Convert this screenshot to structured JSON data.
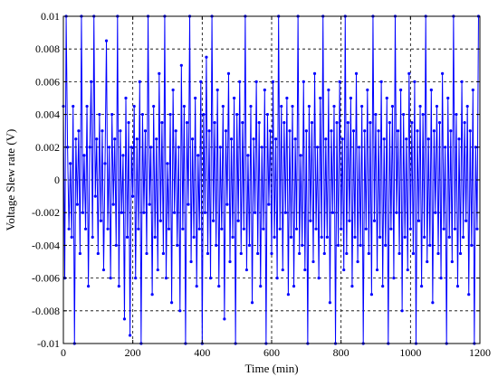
{
  "chart_data": {
    "type": "line",
    "xlabel": "Time (min)",
    "ylabel": "Voltage Slew rate (V)",
    "xlim": [
      0,
      1200
    ],
    "ylim": [
      -0.01,
      0.01
    ],
    "x_ticks": [
      0,
      200,
      400,
      600,
      800,
      1000,
      1200
    ],
    "x_tick_labels": [
      "0",
      "200",
      "400",
      "600",
      "800",
      "1000",
      "1200"
    ],
    "y_ticks": [
      0.01,
      0.008,
      0.006,
      0.004,
      0.002,
      0,
      -0.002,
      -0.004,
      -0.006,
      -0.008,
      -0.01
    ],
    "y_tick_labels": [
      "0.01",
      "0.008",
      "0.006",
      "0.004",
      "0.002",
      "0",
      "-0.002",
      "-0.004",
      "-0.006",
      "-0.008",
      "-0.01"
    ],
    "grid": true,
    "grid_style": "dashed",
    "marker": "dot",
    "series": [
      {
        "color": "#0000ff",
        "x_start": 0,
        "x_step": 4,
        "values": [
          0.0045,
          -0.006,
          0.01,
          0.002,
          -0.003,
          0.001,
          -0.0035,
          0.0045,
          -0.01,
          0.0025,
          -0.0015,
          0.003,
          -0.0045,
          0.01,
          -0.002,
          0.0015,
          -0.003,
          0.0045,
          -0.0065,
          0.002,
          0.006,
          -0.0035,
          0.01,
          -0.001,
          0.0025,
          -0.0045,
          0.004,
          -0.0025,
          0.003,
          -0.0055,
          0.001,
          0.0085,
          -0.003,
          0.002,
          -0.006,
          0.004,
          -0.0015,
          0.0025,
          -0.004,
          0.01,
          -0.0065,
          0.003,
          -0.002,
          0.0015,
          -0.0085,
          0.005,
          -0.0035,
          0.0035,
          -0.0095,
          0.002,
          -0.001,
          0.0045,
          -0.006,
          0.0025,
          -0.003,
          0.006,
          -0.01,
          0.004,
          -0.002,
          0.003,
          -0.0045,
          0.01,
          -0.0015,
          0.002,
          -0.007,
          0.0045,
          -0.0035,
          0.0025,
          -0.0055,
          0.0065,
          -0.0025,
          0.0035,
          -0.0045,
          0.01,
          -0.006,
          0.001,
          -0.003,
          0.004,
          -0.0075,
          0.0055,
          -0.002,
          0.003,
          -0.004,
          0.002,
          -0.008,
          0.007,
          -0.003,
          0.0045,
          -0.01,
          0.0035,
          -0.0015,
          0.01,
          -0.005,
          0.0025,
          -0.0035,
          0.005,
          -0.0065,
          0.0015,
          -0.003,
          0.006,
          -0.01,
          0.004,
          -0.002,
          0.0075,
          -0.0045,
          0.003,
          -0.006,
          0.01,
          -0.0025,
          0.0035,
          -0.004,
          0.0055,
          -0.0065,
          0.002,
          -0.003,
          0.0045,
          -0.0085,
          0.003,
          -0.0015,
          0.0065,
          -0.005,
          0.0025,
          -0.0035,
          0.005,
          -0.01,
          0.004,
          -0.0025,
          0.006,
          -0.0045,
          0.0035,
          -0.003,
          0.01,
          -0.0055,
          0.0015,
          -0.004,
          0.0045,
          -0.0075,
          0.0025,
          -0.002,
          0.006,
          -0.0045,
          0.0035,
          -0.0065,
          0.002,
          -0.003,
          0.0055,
          -0.01,
          0.004,
          -0.0015,
          0.003,
          -0.0045,
          0.006,
          -0.0035,
          0.0025,
          -0.006,
          0.01,
          -0.003,
          0.0045,
          -0.0055,
          0.0035,
          -0.002,
          0.005,
          -0.007,
          0.003,
          -0.0035,
          0.0045,
          -0.0065,
          0.0025,
          -0.003,
          0.01,
          -0.0045,
          0.0015,
          -0.004,
          0.006,
          -0.0055,
          0.003,
          -0.01,
          0.0045,
          -0.0025,
          0.0035,
          -0.005,
          0.0065,
          -0.003,
          0.002,
          -0.006,
          0.005,
          -0.0035,
          0.01,
          -0.0045,
          0.0025,
          -0.0035,
          0.0055,
          -0.0075,
          0.003,
          -0.002,
          0.0045,
          -0.01,
          0.0035,
          -0.004,
          0.006,
          -0.003,
          0.0025,
          -0.0055,
          0.01,
          -0.0045,
          0.0035,
          -0.0025,
          0.005,
          -0.0065,
          0.003,
          -0.0035,
          0.0065,
          -0.005,
          0.002,
          -0.004,
          0.0045,
          -0.01,
          0.003,
          -0.003,
          0.0055,
          -0.0045,
          0.0035,
          -0.007,
          0.01,
          -0.0025,
          0.004,
          -0.0055,
          0.003,
          -0.0035,
          0.006,
          -0.0065,
          0.0025,
          -0.004,
          0.005,
          -0.01,
          0.0035,
          -0.003,
          0.0045,
          -0.006,
          0.01,
          -0.002,
          0.003,
          -0.0045,
          0.0055,
          -0.008,
          0.004,
          -0.0035,
          0.0025,
          -0.0055,
          0.0065,
          -0.003,
          0.0035,
          -0.0045,
          0.006,
          -0.01,
          0.003,
          -0.0025,
          0.0045,
          -0.0065,
          0.004,
          -0.0035,
          0.01,
          -0.005,
          0.0025,
          -0.004,
          0.0055,
          -0.0075,
          0.003,
          -0.002,
          0.0045,
          -0.0045,
          0.0035,
          -0.006,
          0.0065,
          -0.003,
          0.002,
          -0.01,
          0.005,
          -0.0035,
          0.003,
          -0.005,
          0.01,
          -0.003,
          0.004,
          -0.0065,
          0.0025,
          -0.0045,
          0.006,
          -0.0035,
          0.0035,
          -0.0025,
          0.0045,
          -0.007,
          0.003,
          -0.004,
          0.0055,
          -0.01,
          0.002,
          -0.003,
          0.01
        ]
      }
    ]
  }
}
